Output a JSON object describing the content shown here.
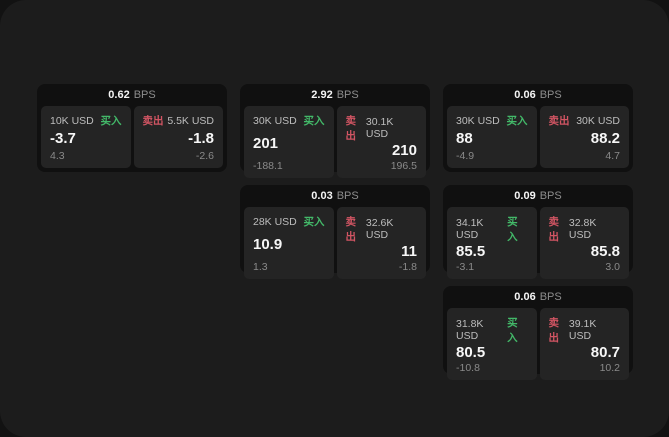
{
  "labels": {
    "bps": "BPS",
    "buy": "买入",
    "sell": "卖出"
  },
  "colors": {
    "backdrop": "#121212",
    "surface": "#1c1c1c",
    "card_bg": "#101010",
    "panel_bg": "#242424",
    "buy_green": "#43b969",
    "sell_red": "#d25563"
  },
  "cards": [
    {
      "bps": "0.62",
      "buy": {
        "amount": "10K USD",
        "value": "-3.7",
        "sub": "4.3"
      },
      "sell": {
        "amount": "5.5K USD",
        "value": "-1.8",
        "sub": "-2.6"
      }
    },
    {
      "bps": "2.92",
      "buy": {
        "amount": "30K USD",
        "value": "201",
        "sub": "-188.1"
      },
      "sell": {
        "amount": "30.1K USD",
        "value": "210",
        "sub": "196.5"
      }
    },
    {
      "bps": "0.06",
      "buy": {
        "amount": "30K USD",
        "value": "88",
        "sub": "-4.9"
      },
      "sell": {
        "amount": "30K USD",
        "value": "88.2",
        "sub": "4.7"
      }
    },
    {
      "bps": "0.03",
      "buy": {
        "amount": "28K USD",
        "value": "10.9",
        "sub": "1.3"
      },
      "sell": {
        "amount": "32.6K USD",
        "value": "11",
        "sub": "-1.8"
      }
    },
    {
      "bps": "0.09",
      "buy": {
        "amount": "34.1K USD",
        "value": "85.5",
        "sub": "-3.1"
      },
      "sell": {
        "amount": "32.8K USD",
        "value": "85.8",
        "sub": "3.0"
      }
    },
    {
      "bps": "0.06",
      "buy": {
        "amount": "31.8K USD",
        "value": "80.5",
        "sub": "-10.8"
      },
      "sell": {
        "amount": "39.1K USD",
        "value": "80.7",
        "sub": "10.2"
      }
    }
  ]
}
